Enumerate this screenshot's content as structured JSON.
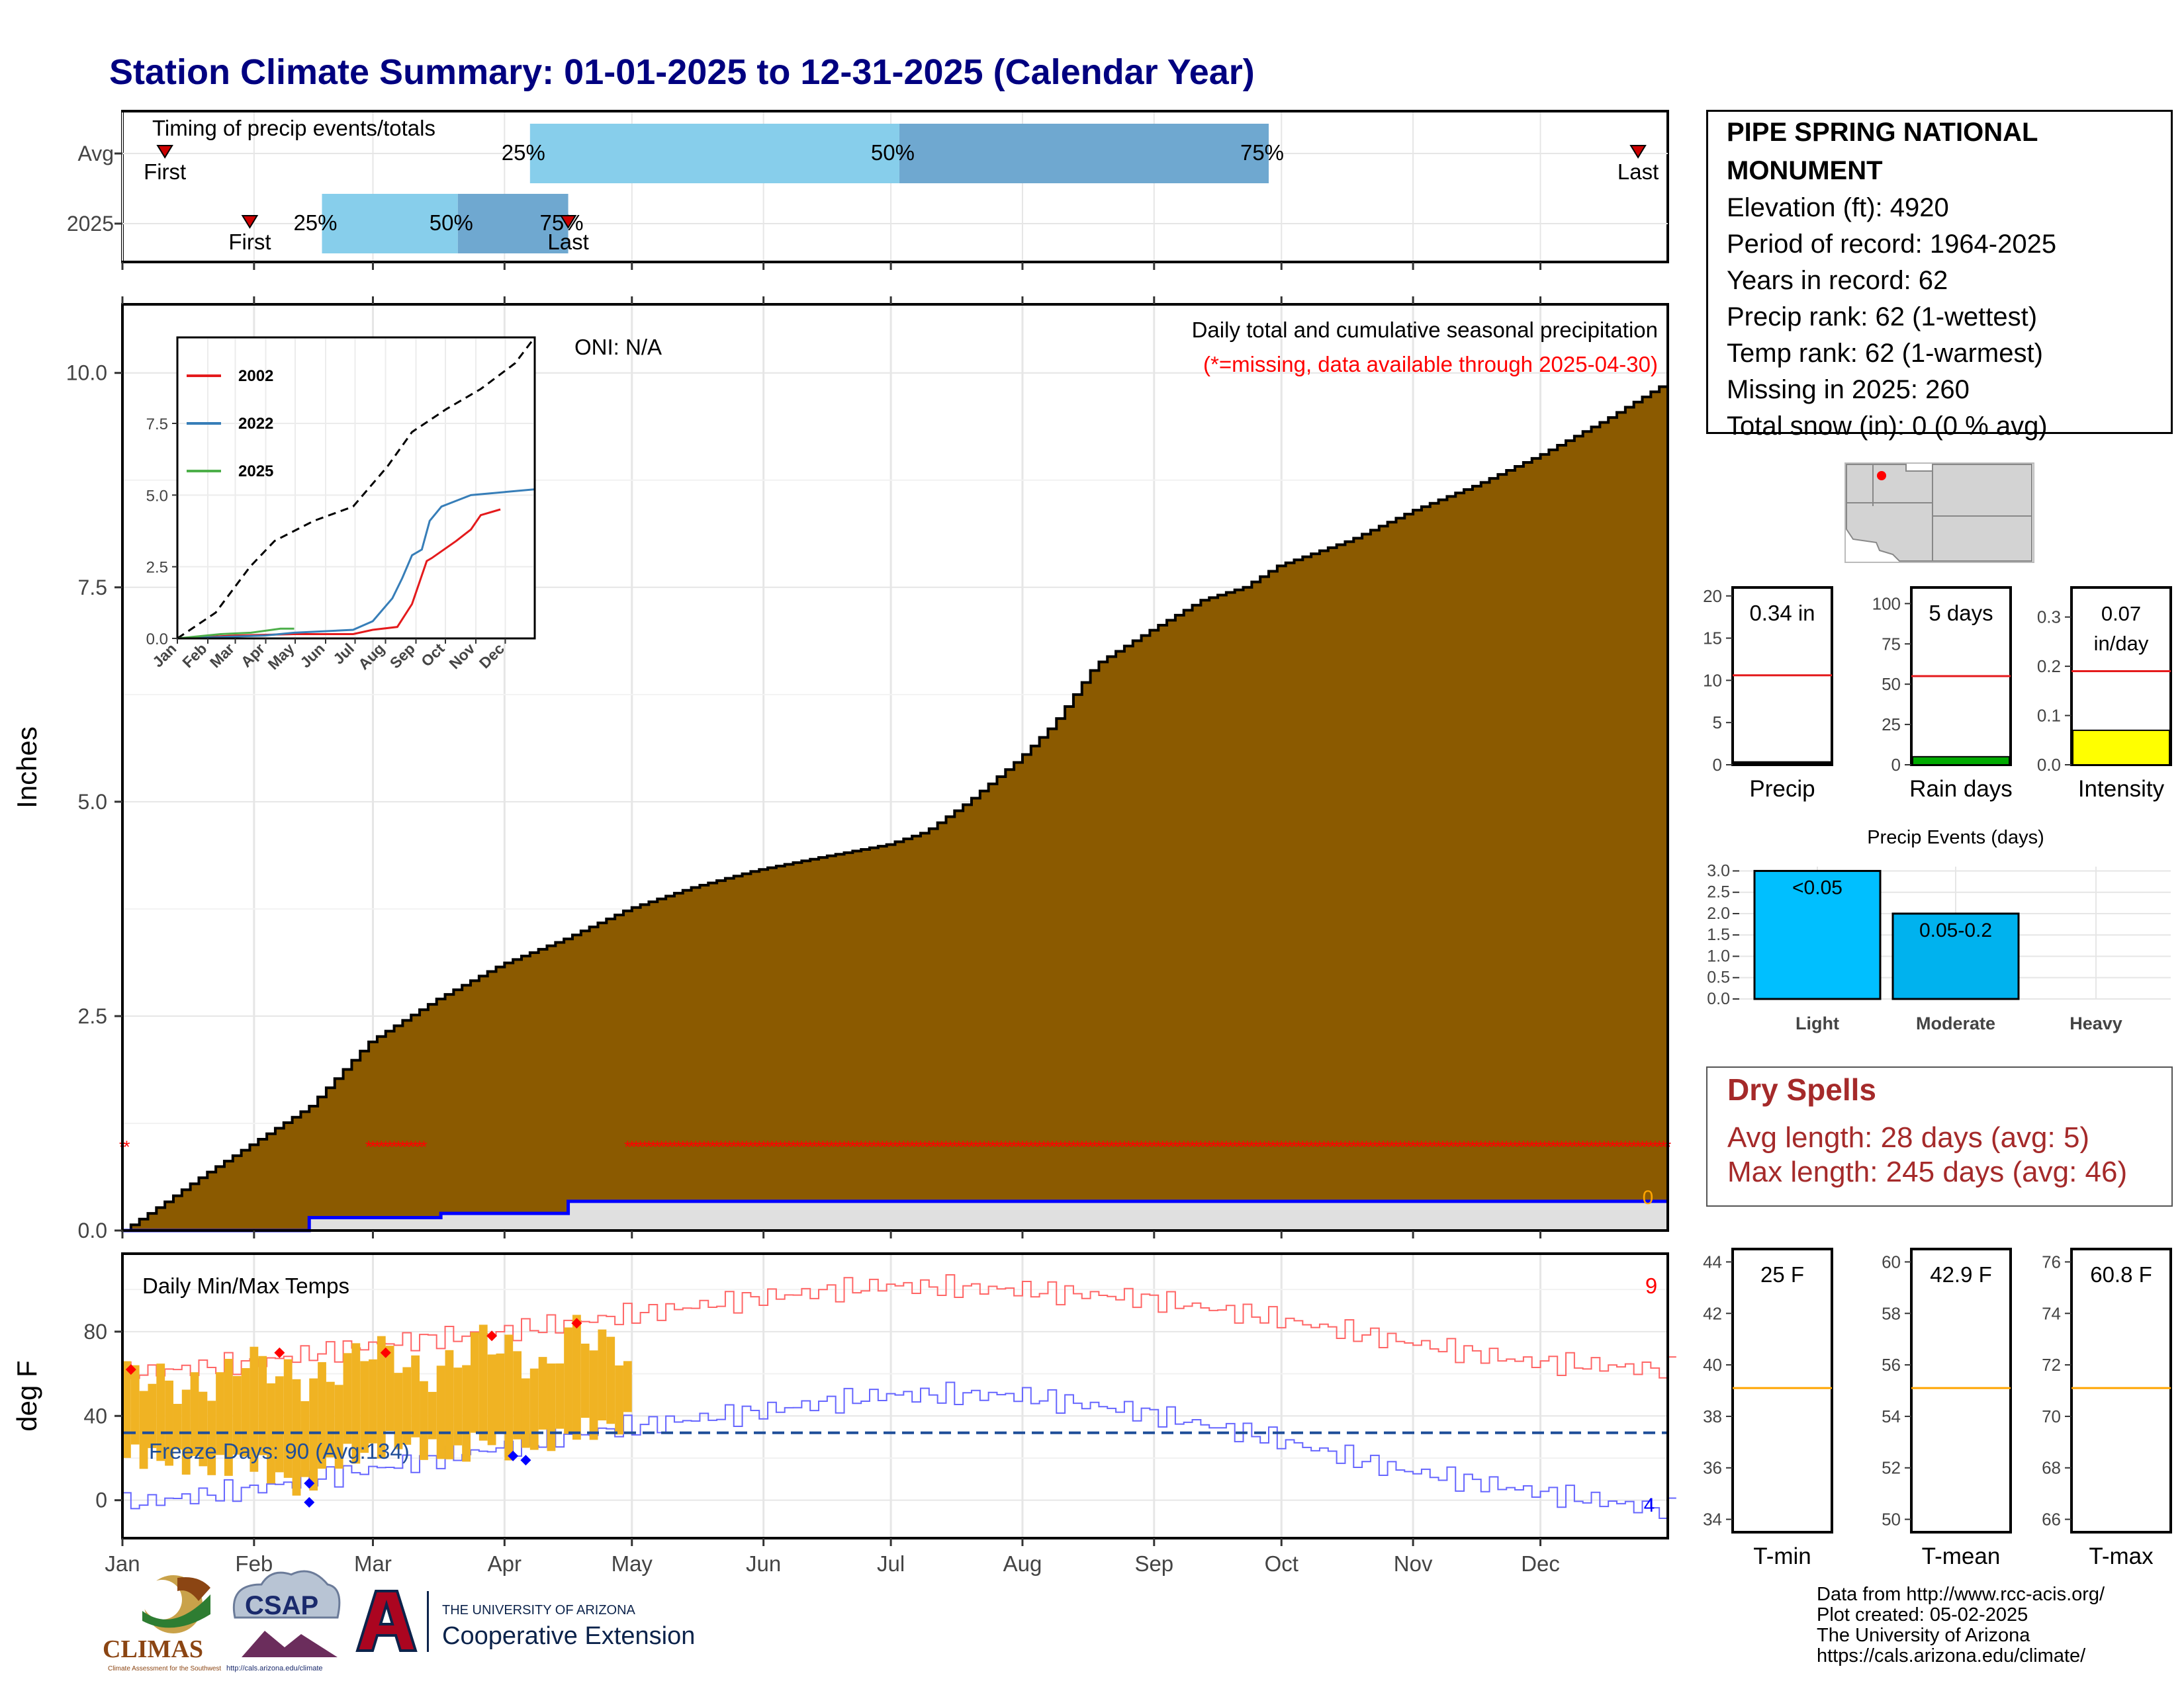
{
  "title": "Station Climate Summary: 01-01-2025 to 12-31-2025 (Calendar Year)",
  "timing": {
    "panel_title": "Timing of precip events/totals",
    "row_labels": [
      "Avg",
      "2025"
    ],
    "avg": {
      "first": 11,
      "p25": 97,
      "p50": 184,
      "p75": 271,
      "last": 358
    },
    "y2025": {
      "first": 31,
      "p25": 48,
      "p50": 80,
      "p75": 106,
      "last": 106
    },
    "pct_labels": [
      "25%",
      "50%",
      "75%"
    ],
    "first_label": "First",
    "last_label": "Last"
  },
  "colors": {
    "cumulative_fill": "#8b5a00",
    "light_blue": "#87ceeb",
    "mid_blue": "#6fa8d0",
    "missing_red": "#ff0000",
    "tmax_line": "#ff6666",
    "tmin_line": "#6666ff",
    "bar_gold": "#f0b323",
    "freeze_dash": "#1f4e99",
    "mean_orange": "#ffa500",
    "dry_text": "#a52a2a",
    "title_navy": "#000080"
  },
  "chart_data": [
    {
      "type": "area",
      "title": "Daily total and cumulative seasonal precipitation",
      "subtitle": "(*=missing, data available through 2025-04-30)",
      "oni": "ONI: N/A",
      "ylabel": "Inches",
      "ylim": [
        0,
        10.8
      ],
      "yticks": [
        0.0,
        2.5,
        5.0,
        7.5,
        10.0
      ],
      "ytick_labels": [
        "0.0",
        "2.5",
        "5.0",
        "7.5",
        "10.0"
      ],
      "xlim_days": [
        1,
        365
      ],
      "right_label": "0",
      "avg_cumulative": {
        "day": [
          1,
          10,
          20,
          31,
          45,
          59,
          75,
          90,
          105,
          120,
          135,
          150,
          165,
          181,
          190,
          200,
          212,
          220,
          230,
          243,
          255,
          265,
          273,
          290,
          305,
          320,
          335,
          350,
          365
        ],
        "inches": [
          0,
          0.3,
          0.65,
          1.0,
          1.45,
          2.2,
          2.7,
          3.1,
          3.4,
          3.75,
          4.0,
          4.2,
          4.35,
          4.5,
          4.65,
          5.0,
          5.5,
          5.9,
          6.6,
          7.0,
          7.35,
          7.5,
          7.75,
          8.05,
          8.4,
          8.7,
          9.05,
          9.45,
          9.9
        ]
      },
      "observed_cumulative": {
        "day": [
          1,
          45,
          45,
          76,
          76,
          106,
          106,
          365
        ],
        "inches": [
          0,
          0,
          0.15,
          0.15,
          0.2,
          0.2,
          0.34,
          0.34
        ]
      },
      "missing_markers_day_ranges": [
        [
          1,
          2
        ],
        [
          59,
          72
        ],
        [
          120,
          365
        ]
      ],
      "missing_marker_y": 1.0
    },
    {
      "type": "line",
      "inset": true,
      "legend": [
        "2002",
        "2022",
        "2025"
      ],
      "series_colors": [
        "#e41a1c",
        "#377eb8",
        "#4daf4a"
      ],
      "ylim": [
        0,
        10.5
      ],
      "yticks": [
        0.0,
        2.5,
        5.0,
        7.5
      ],
      "ytick_labels": [
        "0.0",
        "2.5",
        "5.0",
        "7.5"
      ],
      "xtick_labels": [
        "Jan",
        "Feb",
        "Mar",
        "Apr",
        "May",
        "Jun",
        "Jul",
        "Aug",
        "Sep",
        "Oct",
        "Nov",
        "Dec"
      ],
      "avg_dashed": {
        "day": [
          1,
          40,
          75,
          100,
          140,
          180,
          215,
          240,
          275,
          310,
          345,
          365
        ],
        "inches": [
          0,
          0.9,
          2.5,
          3.4,
          4.1,
          4.6,
          6.0,
          7.2,
          8.0,
          8.7,
          9.6,
          10.5
        ]
      },
      "series": [
        {
          "name": "2002",
          "day": [
            1,
            60,
            120,
            180,
            200,
            225,
            240,
            255,
            260,
            285,
            300,
            310,
            330
          ],
          "inches": [
            0,
            0.1,
            0.15,
            0.15,
            0.3,
            0.4,
            1.2,
            2.7,
            2.8,
            3.4,
            3.8,
            4.3,
            4.5
          ]
        },
        {
          "name": "2022",
          "day": [
            1,
            90,
            120,
            180,
            200,
            220,
            230,
            240,
            250,
            258,
            270,
            285,
            300,
            365
          ],
          "inches": [
            0,
            0.1,
            0.2,
            0.3,
            0.6,
            1.4,
            2.1,
            2.9,
            3.1,
            4.1,
            4.6,
            4.8,
            5.0,
            5.2
          ]
        },
        {
          "name": "2025",
          "day": [
            1,
            45,
            76,
            106,
            120
          ],
          "inches": [
            0,
            0.15,
            0.2,
            0.34,
            0.34
          ]
        }
      ]
    },
    {
      "type": "line",
      "title": "Daily Min/Max Temps",
      "ylabel": "deg F",
      "ylim": [
        -18,
        117
      ],
      "yticks": [
        0,
        40,
        80
      ],
      "freeze_line_f": 32,
      "freeze_label": "Freeze Days: 90 (Avg:134)",
      "top_right_count": "9",
      "bottom_right_count": "4",
      "x_month_labels": [
        "Jan",
        "Feb",
        "Mar",
        "Apr",
        "May",
        "Jun",
        "Jul",
        "Aug",
        "Sep",
        "Oct",
        "Nov",
        "Dec"
      ],
      "observed_daily_range": {
        "day": [
          1,
          8,
          15,
          22,
          29,
          36,
          43,
          50,
          57,
          64,
          71,
          78,
          85,
          92,
          99,
          106,
          113,
          120
        ],
        "tmax_f": [
          60,
          58,
          52,
          55,
          68,
          62,
          55,
          60,
          72,
          70,
          57,
          65,
          78,
          70,
          60,
          82,
          75,
          68
        ],
        "tmin_f": [
          22,
          20,
          18,
          15,
          20,
          12,
          5,
          20,
          22,
          28,
          25,
          20,
          30,
          24,
          28,
          32,
          35,
          36
        ]
      },
      "normal_tmax": {
        "day": [
          1,
          30,
          60,
          90,
          120,
          150,
          180,
          210,
          240,
          270,
          300,
          330,
          365
        ],
        "f": [
          60,
          65,
          74,
          80,
          88,
          96,
          102,
          100,
          96,
          87,
          76,
          66,
          62
        ]
      },
      "normal_tmin": {
        "day": [
          1,
          30,
          60,
          90,
          120,
          150,
          180,
          210,
          240,
          270,
          300,
          330,
          365
        ],
        "f": [
          -2,
          5,
          15,
          25,
          35,
          42,
          50,
          50,
          42,
          30,
          15,
          5,
          -5
        ]
      }
    },
    {
      "type": "bar",
      "title": "Precip",
      "label": "0.34 in",
      "ylim": [
        0,
        21
      ],
      "yticks": [
        0,
        5,
        10,
        15,
        20
      ],
      "value": 0.34,
      "normal": 10.6
    },
    {
      "type": "bar",
      "title": "Rain days",
      "label": "5 days",
      "ylim": [
        0,
        110
      ],
      "yticks": [
        0,
        25,
        50,
        75,
        100
      ],
      "value": 5,
      "normal": 55
    },
    {
      "type": "bar",
      "title": "Intensity",
      "label": "0.07",
      "label2": "in/day",
      "ylim": [
        0,
        0.36
      ],
      "yticks": [
        0.0,
        0.1,
        0.2,
        0.3
      ],
      "ytick_labels": [
        "0.0",
        "0.1",
        "0.2",
        "0.3"
      ],
      "value": 0.07,
      "normal": 0.19
    },
    {
      "type": "bar",
      "title": "Precip Events (days)",
      "categories": [
        "Light",
        "Moderate",
        "Heavy"
      ],
      "bar_labels": [
        "<0.05",
        "0.05-0.2",
        ""
      ],
      "values": [
        3,
        2,
        0
      ],
      "ylim": [
        0,
        3.1
      ],
      "yticks": [
        0.0,
        0.5,
        1.0,
        1.5,
        2.0,
        2.5,
        3.0
      ],
      "ytick_labels": [
        "0.0",
        "0.5",
        "1.0",
        "1.5",
        "2.0",
        "2.5",
        "3.0"
      ]
    },
    {
      "type": "bar",
      "title": "T-min",
      "label": "25 F",
      "ylim": [
        33.5,
        44.5
      ],
      "yticks": [
        34,
        36,
        38,
        40,
        42,
        44
      ],
      "value": 25,
      "normal": 39.1
    },
    {
      "type": "bar",
      "title": "T-mean",
      "label": "42.9 F",
      "ylim": [
        49.5,
        60.5
      ],
      "yticks": [
        50,
        52,
        54,
        56,
        58,
        60
      ],
      "value": 42.9,
      "normal": 55.1
    },
    {
      "type": "bar",
      "title": "T-max",
      "label": "60.8 F",
      "ylim": [
        65.5,
        76.5
      ],
      "yticks": [
        66,
        68,
        70,
        72,
        74,
        76
      ],
      "value": 60.8,
      "normal": 71.1
    }
  ],
  "station": {
    "name": "PIPE SPRING NATIONAL MONUMENT",
    "lines": [
      "Elevation (ft): 4920",
      "Period of record: 1964-2025",
      "Years in record: 62",
      "Precip rank: 62 (1-wettest)",
      "Temp rank: 62 (1-warmest)",
      "Missing in 2025: 260",
      "Total snow (in): 0 (0 % avg)"
    ]
  },
  "dry_spells": {
    "title": "Dry Spells",
    "avg": "Avg length: 28 days (avg: 5)",
    "max": "Max length: 245 days (avg: 46)"
  },
  "credits": [
    "Data from http://www.rcc-acis.org/",
    "Plot created: 05-02-2025",
    "The University of Arizona",
    "https://cals.arizona.edu/climate/"
  ],
  "logos": {
    "climas": "CLIMAS",
    "climas_sub": "Climate Assessment for the Southwest",
    "csap": "CSAP",
    "csap_url": "http://cals.arizona.edu/climate",
    "ua_line1": "THE UNIVERSITY OF ARIZONA",
    "ua_line2": "Cooperative Extension"
  }
}
